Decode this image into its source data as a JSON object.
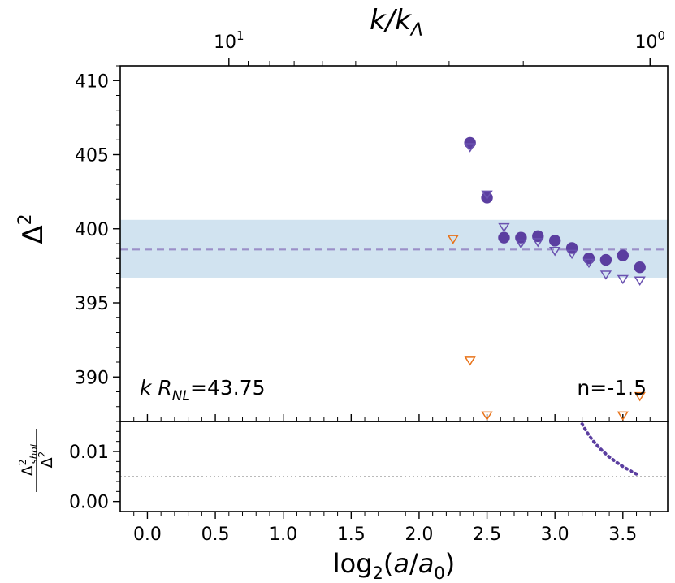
{
  "chart_data": {
    "type": "scatter",
    "colors": {
      "purple": "#5b3ea0",
      "hollow_purple": "#6a52b0",
      "orange": "#e8731a",
      "band": "#b8d4e8",
      "dash": "#9b8fc8",
      "ref_line": "#b0b0b0"
    },
    "top_axis": {
      "label": "k/k_Λ",
      "label_main": "k/k",
      "label_sub": "Λ",
      "scale": "log",
      "ticks": [
        {
          "base": "10",
          "exp": "1",
          "log2a": 0.6
        },
        {
          "base": "10",
          "exp": "0",
          "log2a": 3.7
        }
      ]
    },
    "main_panel": {
      "ylabel": "Δ²",
      "ylabel_base": "Δ",
      "ylabel_exp": "2",
      "ylim": [
        387,
        411
      ],
      "yticks": [
        390,
        395,
        400,
        405,
        410
      ],
      "band": [
        396.7,
        400.6
      ],
      "dashed_line": 398.6,
      "annotation_left": {
        "pre": "k R",
        "sub": "NL",
        "post": "=43.75"
      },
      "annotation_right": "n=-1.5",
      "series": [
        {
          "marker": "filled-circle",
          "points": [
            [
              2.375,
              405.8
            ],
            [
              2.5,
              402.1
            ],
            [
              2.625,
              399.4
            ],
            [
              2.75,
              399.4
            ],
            [
              2.875,
              399.5
            ],
            [
              3.0,
              399.2
            ],
            [
              3.125,
              398.7
            ],
            [
              3.25,
              398.0
            ],
            [
              3.375,
              397.9
            ],
            [
              3.5,
              398.2
            ],
            [
              3.625,
              397.4
            ]
          ]
        },
        {
          "marker": "hollow-triangle-down",
          "points": [
            [
              2.375,
              405.5
            ],
            [
              2.5,
              402.3
            ],
            [
              2.625,
              400.1
            ],
            [
              2.75,
              399.0
            ],
            [
              2.875,
              399.1
            ],
            [
              3.0,
              398.5
            ],
            [
              3.125,
              398.3
            ],
            [
              3.25,
              397.7
            ],
            [
              3.375,
              396.9
            ],
            [
              3.5,
              396.6
            ],
            [
              3.625,
              396.5
            ]
          ]
        },
        {
          "marker": "hollow-triangle-down-orange",
          "points": [
            [
              2.25,
              399.3
            ],
            [
              2.375,
              391.1
            ],
            [
              2.5,
              387.4
            ],
            [
              3.5,
              387.4
            ],
            [
              3.625,
              388.7
            ]
          ]
        }
      ]
    },
    "lower_panel": {
      "ylabel_num_base": "Δ",
      "ylabel_num_exp": "2",
      "ylabel_num_sub": "shot",
      "ylabel_den_base": "Δ",
      "ylabel_den_exp": "2",
      "ylim": [
        -0.002,
        0.016
      ],
      "yticks": [
        "0.00",
        "0.01"
      ],
      "ytick_values": [
        0.0,
        0.01
      ],
      "ref_line": 0.005,
      "curve": [
        [
          3.2,
          0.0155
        ],
        [
          3.25,
          0.0132
        ],
        [
          3.3,
          0.0115
        ],
        [
          3.35,
          0.0101
        ],
        [
          3.4,
          0.0089
        ],
        [
          3.45,
          0.0079
        ],
        [
          3.5,
          0.007
        ],
        [
          3.55,
          0.0062
        ],
        [
          3.6,
          0.0055
        ],
        [
          3.625,
          0.0051
        ]
      ]
    },
    "x_axis": {
      "label": "log₂(a/a₀)",
      "label_pre": "log",
      "label_sub": "2",
      "label_mid": "(",
      "label_var_a": "a",
      "label_slash": "/",
      "label_var_a0": "a",
      "label_sub0": "0",
      "label_post": ")",
      "xlim": [
        -0.2,
        3.83
      ],
      "ticks": [
        "0.0",
        "0.5",
        "1.0",
        "1.5",
        "2.0",
        "2.5",
        "3.0",
        "3.5"
      ],
      "tick_values": [
        0.0,
        0.5,
        1.0,
        1.5,
        2.0,
        2.5,
        3.0,
        3.5
      ]
    }
  }
}
